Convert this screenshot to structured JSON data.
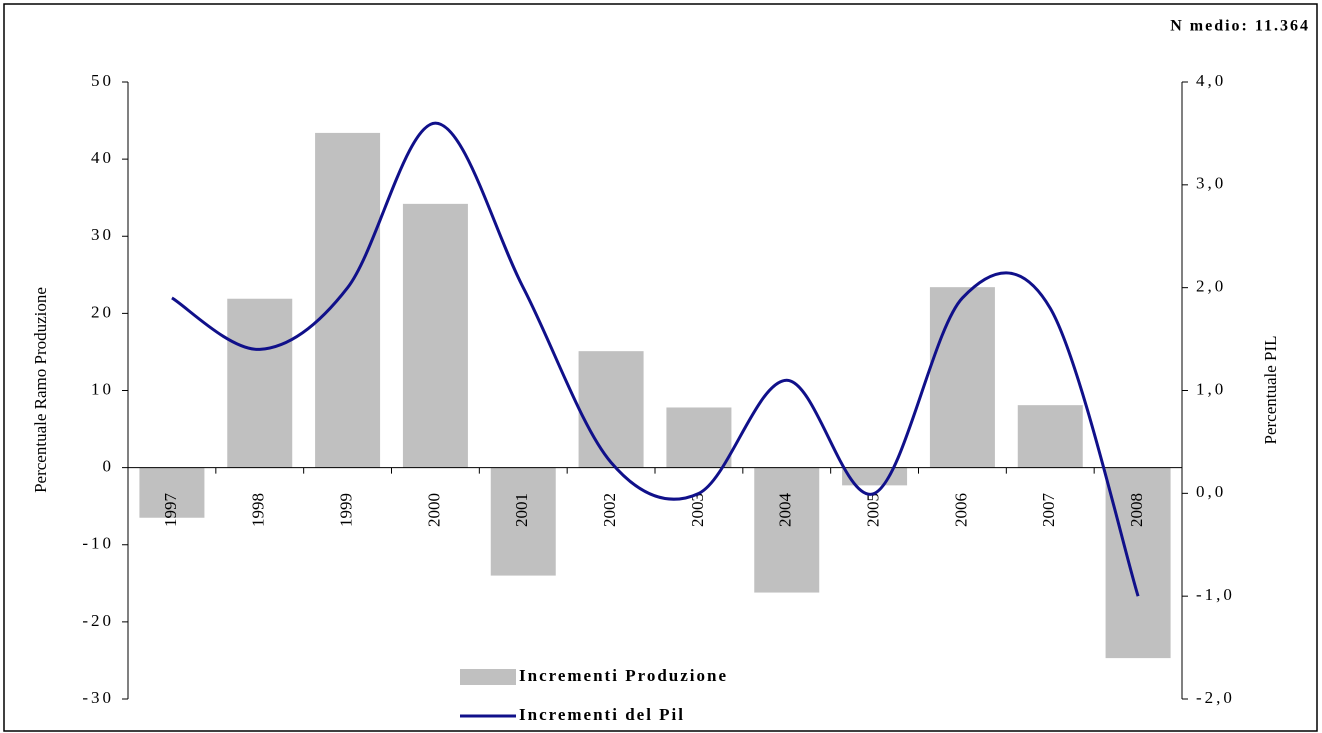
{
  "chart_data": {
    "type": "bar",
    "annotation": "N medio: 11.364",
    "ylabel": "Percentuale Ramo Produzione",
    "y2label": "Percentuale PIL",
    "categories": [
      "1997",
      "1998",
      "1999",
      "2000",
      "2001",
      "2002",
      "2003",
      "2004",
      "2005",
      "2006",
      "2007",
      "2008"
    ],
    "series": [
      {
        "name": "Incrementi Produzione",
        "type": "bar",
        "color": "#c0c0c0",
        "values": [
          -6.5,
          21.9,
          43.4,
          34.2,
          -14.0,
          15.1,
          7.8,
          -16.2,
          -2.3,
          23.4,
          8.1,
          -24.7
        ]
      },
      {
        "name": "Incrementi del Pil",
        "type": "line",
        "axis": "y2",
        "color": "#10108a",
        "values": [
          1.9,
          1.4,
          2.0,
          3.6,
          2.0,
          0.3,
          0.0,
          1.1,
          0.0,
          1.9,
          1.8,
          -1.0
        ]
      }
    ],
    "ylim": [
      -30,
      50
    ],
    "yticks": [
      -30,
      -20,
      -10,
      0,
      10,
      20,
      30,
      40,
      50
    ],
    "y2lim": [
      -2,
      4
    ],
    "y2ticks": [
      {
        "value": -2,
        "label": "-2,0"
      },
      {
        "value": -1,
        "label": "-1,0"
      },
      {
        "value": 0,
        "label": "0,0"
      },
      {
        "value": 1,
        "label": "1,0"
      },
      {
        "value": 2,
        "label": "2,0"
      },
      {
        "value": 3,
        "label": "3,0"
      },
      {
        "value": 4,
        "label": "4,0"
      }
    ]
  }
}
